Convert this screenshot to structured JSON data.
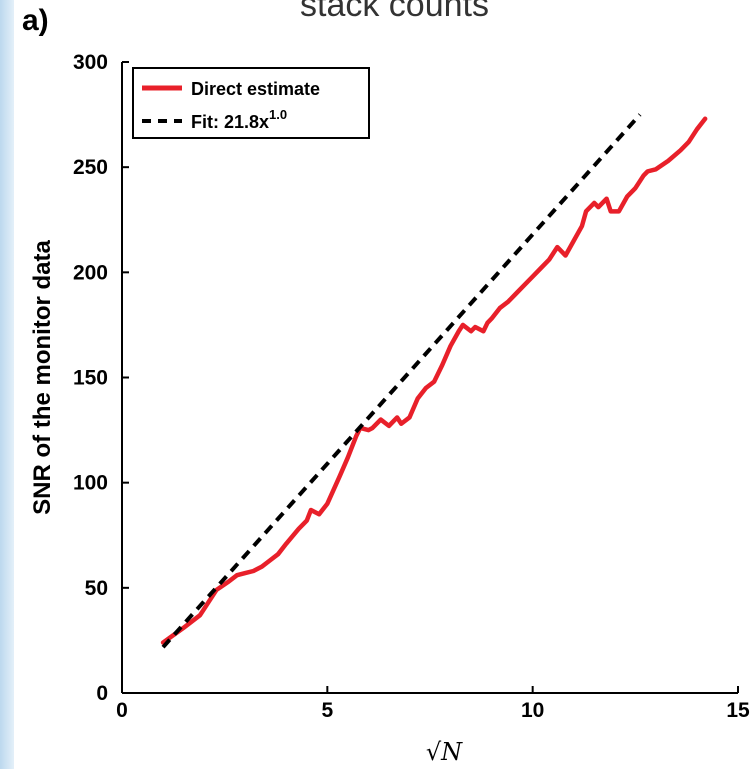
{
  "header": {
    "caption": "stack counts"
  },
  "panel_label": "a)",
  "colors": {
    "direct": "#e8202a",
    "fit": "#000000",
    "side_strip": "#cfe3f4"
  },
  "chart_data": {
    "type": "line",
    "title": "",
    "xlabel": "√N",
    "ylabel": "SNR of the monitor data",
    "xlim": [
      0,
      15
    ],
    "ylim": [
      0,
      300
    ],
    "xticks": [
      0,
      5,
      10,
      15
    ],
    "yticks": [
      0,
      50,
      100,
      150,
      200,
      250,
      300
    ],
    "grid": false,
    "legend_position": "top-left",
    "series": [
      {
        "name": "Direct estimate",
        "style": "solid",
        "color": "#e8202a",
        "x": [
          1.0,
          1.5,
          1.9,
          2.1,
          2.3,
          2.6,
          2.8,
          3.0,
          3.2,
          3.4,
          3.6,
          3.8,
          4.0,
          4.3,
          4.5,
          4.6,
          4.8,
          5.0,
          5.3,
          5.5,
          5.7,
          5.8,
          6.0,
          6.1,
          6.3,
          6.5,
          6.7,
          6.8,
          7.0,
          7.2,
          7.4,
          7.6,
          7.8,
          8.0,
          8.2,
          8.3,
          8.5,
          8.6,
          8.8,
          8.9,
          9.0,
          9.2,
          9.4,
          9.6,
          9.8,
          10.0,
          10.2,
          10.4,
          10.6,
          10.8,
          11.0,
          11.2,
          11.3,
          11.5,
          11.6,
          11.8,
          11.9,
          12.1,
          12.3,
          12.5,
          12.7,
          12.8,
          13.0,
          13.3,
          13.6,
          13.8,
          14.0,
          14.2
        ],
        "y": [
          24,
          31,
          37,
          43,
          49,
          53,
          56,
          57,
          58,
          60,
          63,
          66,
          71,
          78,
          82,
          87,
          85,
          90,
          103,
          112,
          122,
          126,
          125,
          126,
          130,
          127,
          131,
          128,
          131,
          140,
          145,
          148,
          156,
          165,
          172,
          175,
          172,
          174,
          172,
          176,
          178,
          183,
          186,
          190,
          194,
          198,
          202,
          206,
          212,
          208,
          215,
          222,
          229,
          233,
          231,
          235,
          229,
          229,
          236,
          240,
          246,
          248,
          249,
          253,
          258,
          262,
          268,
          273
        ]
      },
      {
        "name": "Fit: 21.8x",
        "name_superscript": "1.0",
        "style": "dashed",
        "color": "#000000",
        "x": [
          1.0,
          14.2
        ],
        "y": [
          21.8,
          309.6
        ]
      }
    ]
  }
}
